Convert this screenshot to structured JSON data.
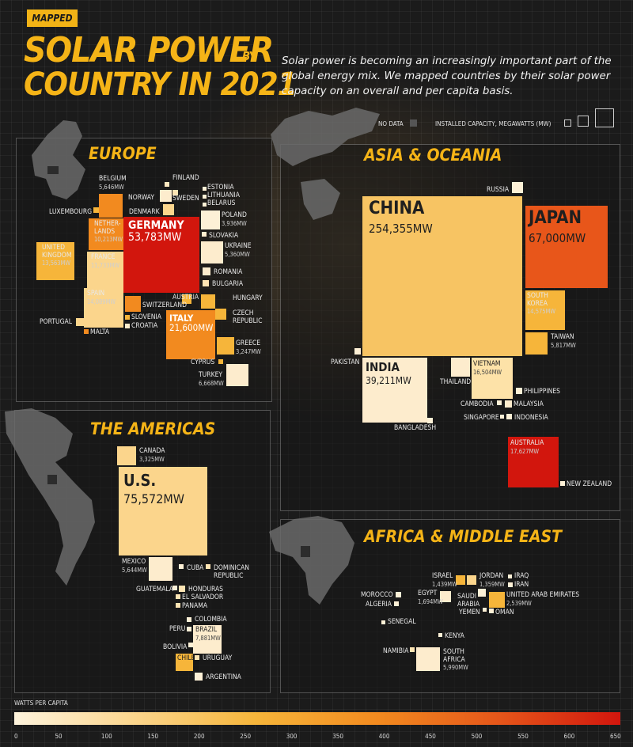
{
  "badge": "MAPPED",
  "title": {
    "line1": "SOLAR POWER",
    "by": "BY",
    "line2": "COUNTRY IN 2021"
  },
  "description": "Solar power is becoming an increasingly important part of the global energy mix. We mapped countries by their solar power capacity on an overall and per capita basis.",
  "key": {
    "no_data": "NO DATA",
    "installed": "INSTALLED CAPACITY, MEGAWATTS (MW)"
  },
  "regions": {
    "europe": "EUROPE",
    "asia": "ASIA & OCEANIA",
    "americas": "THE AMERICAS",
    "africa": "AFRICA & MIDDLE EAST"
  },
  "big": {
    "germany": {
      "name": "GERMANY",
      "value": "53,783MW"
    },
    "italy": {
      "name": "ITALY",
      "value": "21,600MW"
    },
    "china": {
      "name": "CHINA",
      "value": "254,355MW"
    },
    "japan": {
      "name": "JAPAN",
      "value": "67,000MW"
    },
    "india": {
      "name": "INDIA",
      "value": "39,211MW"
    },
    "us": {
      "name": "U.S.",
      "value": "75,572MW"
    }
  },
  "labels": {
    "belgium": "BELGIUM",
    "belgium_v": "5,646MW",
    "finland": "FINLAND",
    "estonia": "ESTONIA",
    "lithuania": "LITHUANIA",
    "belarus": "BELARUS",
    "norway": "NORWAY",
    "sweden": "SWEDEN",
    "luxembourg": "LUXEMBOURG",
    "denmark": "DENMARK",
    "poland": "POLAND",
    "poland_v": "3,936MW",
    "netherlands": "NETHER-\nLANDS",
    "netherlands_v": "10,213MW",
    "slovakia": "SLOVAKIA",
    "uk": "UNITED\nKINGDOM",
    "uk_v": "13,563MW",
    "france": "FRANCE",
    "france_v": "11,733MW",
    "ukraine": "UKRAINE",
    "ukraine_v": "5,360MW",
    "romania": "ROMANIA",
    "bulgaria": "BULGARIA",
    "spain": "SPAIN",
    "spain_v": "14,089MW",
    "austria": "AUSTRIA",
    "hungary": "HUNGARY",
    "switzerland": "SWITZERLAND",
    "czech": "CZECH\nREPUBLIC",
    "portugal": "PORTUGAL",
    "slovenia": "SLOVENIA",
    "croatia": "CROATIA",
    "malta": "MALTA",
    "greece": "GREECE",
    "greece_v": "3,247MW",
    "cyprus": "CYPRUS",
    "turkey": "TURKEY",
    "turkey_v": "6,668MW",
    "russia": "RUSSIA",
    "south_korea": "SOUTH\nKOREA",
    "south_korea_v": "14,575MW",
    "taiwan": "TAIWAN",
    "taiwan_v": "5,817MW",
    "pakistan": "PAKISTAN",
    "thailand": "THAILAND",
    "vietnam": "VIETNAM",
    "vietnam_v": "16,504MW",
    "philippines": "PHILIPPINES",
    "cambodia": "CAMBODIA",
    "malaysia": "MALAYSIA",
    "singapore": "SINGAPORE",
    "indonesia": "INDONESIA",
    "bangladesh": "BANGLADESH",
    "australia": "AUSTRALIA",
    "australia_v": "17,627MW",
    "new_zealand": "NEW ZEALAND",
    "canada": "CANADA",
    "canada_v": "3,325MW",
    "mexico": "MEXICO",
    "mexico_v": "5,644MW",
    "cuba": "CUBA",
    "dominican": "DOMINICAN\nREPUBLIC",
    "guatemala": "GUATEMALA",
    "honduras": "HONDURAS",
    "el_salvador": "EL SALVADOR",
    "panama": "PANAMA",
    "colombia": "COLOMBIA",
    "peru": "PERU",
    "brazil": "BRAZIL",
    "brazil_v": "7,881MW",
    "bolivia": "BOLIVIA",
    "chile": "CHILE",
    "uruguay": "URUGUAY",
    "argentina": "ARGENTINA",
    "israel": "ISRAEL",
    "israel_v": "1,439MW",
    "jordan": "JORDAN",
    "jordan_v": "1,359MW",
    "iraq": "IRAQ",
    "iran": "IRAN",
    "morocco": "MOROCCO",
    "algeria": "ALGERIA",
    "egypt": "EGYPT",
    "egypt_v": "1,694MW",
    "saudi": "SAUDI\nARABIA",
    "uae": "UNITED ARAB EMIRATES",
    "uae_v": "2,539MW",
    "yemen": "YEMEN",
    "oman": "OMAN",
    "senegal": "SENEGAL",
    "kenya": "KENYA",
    "namibia": "NAMIBIA",
    "south_africa": "SOUTH\nAFRICA",
    "south_africa_v": "5,990MW"
  },
  "legend": {
    "title": "WATTS PER CAPITA",
    "ticks": [
      "0",
      "50",
      "100",
      "150",
      "200",
      "250",
      "300",
      "350",
      "400",
      "450",
      "500",
      "550",
      "600",
      "650"
    ],
    "colors": [
      "#fdf3dc",
      "#fbd58c",
      "#f6b53a",
      "#f28a1f",
      "#e5561a",
      "#d2160d"
    ]
  }
}
